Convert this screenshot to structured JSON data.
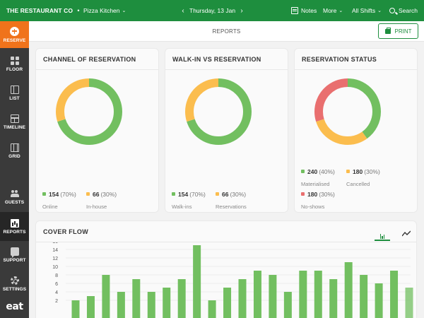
{
  "topbar": {
    "brand": "THE RESTAURANT CO",
    "venue_icon": "dot-icon",
    "venue": "Pizza Kitchen",
    "date": "Thursday, 13 Jan",
    "notes": "Notes",
    "more": "More",
    "shifts": "All Shifts",
    "search": "Search",
    "prev_glyph": "‹",
    "next_glyph": "›",
    "chevron": "⌄"
  },
  "sidebar": {
    "items": [
      {
        "label": "RESERVE",
        "icon": "plus-circle-icon"
      },
      {
        "label": "FLOOR",
        "icon": "floor-icon"
      },
      {
        "label": "LIST",
        "icon": "list-icon"
      },
      {
        "label": "TIMELINE",
        "icon": "timeline-icon"
      },
      {
        "label": "GRID",
        "icon": "grid-icon"
      },
      {
        "label": "GUESTS",
        "icon": "guests-icon"
      },
      {
        "label": "REPORTS",
        "icon": "reports-icon"
      },
      {
        "label": "SUPPORT",
        "icon": "support-icon"
      },
      {
        "label": "SETTINGS",
        "icon": "settings-icon"
      }
    ],
    "logo": "eat"
  },
  "header": {
    "title": "REPORTS",
    "print_label": "PRINT"
  },
  "colors": {
    "brand_green": "#1e8e3e",
    "accent_orange": "#f0731b",
    "series_green": "#72bf60",
    "series_amber": "#fbbd4e",
    "series_red": "#e96f6f",
    "sidebar_bg": "#3a3a3a"
  },
  "cards": {
    "channel": {
      "title": "CHANNEL OF RESERVATION",
      "items": [
        {
          "value": "154",
          "pct": "(70%)",
          "label": "Online"
        },
        {
          "value": "66",
          "pct": "(30%)",
          "label": "In-house"
        }
      ]
    },
    "walkin": {
      "title": "WALK-IN VS RESERVATION",
      "items": [
        {
          "value": "154",
          "pct": "(70%)",
          "label": "Walk-ins"
        },
        {
          "value": "66",
          "pct": "(30%)",
          "label": "Reservations"
        }
      ]
    },
    "status": {
      "title": "RESERVATION STATUS",
      "items": [
        {
          "value": "240",
          "pct": "(40%)",
          "label": "Materialised"
        },
        {
          "value": "180",
          "pct": "(30%)",
          "label": "Cancelled"
        },
        {
          "value": "180",
          "pct": "(30%)",
          "label": "No-shows"
        }
      ]
    },
    "cover_flow": {
      "title": "COVER FLOW",
      "bar_tab_icon": "bar-chart-icon",
      "line_tab_icon": "line-chart-icon"
    }
  },
  "chart_data": [
    {
      "type": "pie",
      "categories": [
        "Online",
        "In-house"
      ],
      "values": [
        154,
        66
      ],
      "percents": [
        70,
        30
      ],
      "colors": [
        "#72bf60",
        "#fbbd4e"
      ],
      "title": "CHANNEL OF RESERVATION"
    },
    {
      "type": "pie",
      "categories": [
        "Walk-ins",
        "Reservations"
      ],
      "values": [
        154,
        66
      ],
      "percents": [
        70,
        30
      ],
      "colors": [
        "#72bf60",
        "#fbbd4e"
      ],
      "title": "WALK-IN VS RESERVATION"
    },
    {
      "type": "pie",
      "categories": [
        "Materialised",
        "Cancelled",
        "No-shows"
      ],
      "values": [
        240,
        180,
        180
      ],
      "percents": [
        40,
        30,
        30
      ],
      "colors": [
        "#72bf60",
        "#fbbd4e",
        "#e96f6f"
      ],
      "title": "RESERVATION STATUS"
    },
    {
      "type": "bar",
      "title": "COVER FLOW",
      "yticks": [
        2,
        4,
        6,
        8,
        10,
        12,
        14,
        16
      ],
      "ylim": [
        0,
        16
      ],
      "values": [
        2,
        3,
        8,
        4,
        7,
        4,
        5,
        7,
        15,
        2,
        5,
        7,
        9,
        8,
        4,
        9,
        9,
        7,
        11,
        8,
        6,
        9,
        5
      ],
      "colors": [
        "#72bf60"
      ],
      "grid": true
    }
  ]
}
